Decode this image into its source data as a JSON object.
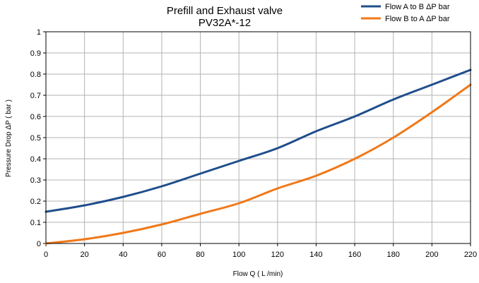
{
  "chart_data": {
    "type": "line",
    "title": "Prefill and Exhaust valve",
    "subtitle": "PV32A*-12",
    "xlabel": "Flow Q ( L /min)",
    "ylabel": "Pressure Drop   ΔP ( bar )",
    "xlim": [
      0,
      220
    ],
    "ylim": [
      0,
      1
    ],
    "xticks": [
      0,
      20,
      40,
      60,
      80,
      100,
      120,
      140,
      160,
      180,
      200,
      220
    ],
    "yticks": [
      0,
      0.1,
      0.2,
      0.3,
      0.4,
      0.5,
      0.6,
      0.7,
      0.8,
      0.9,
      1
    ],
    "ytick_labels": [
      "0",
      "0.1",
      "0.2",
      "0.3",
      "0.4",
      "0.5",
      "0.6",
      "0.7",
      "0.8",
      "0.9",
      "1"
    ],
    "grid": true,
    "legend_position": "top-right",
    "x": [
      0,
      20,
      40,
      60,
      80,
      100,
      120,
      140,
      160,
      180,
      200,
      220
    ],
    "series": [
      {
        "name": "Flow A to B ΔP bar",
        "color": "#1f4e8c",
        "values": [
          0.15,
          0.18,
          0.22,
          0.27,
          0.33,
          0.39,
          0.45,
          0.53,
          0.6,
          0.68,
          0.75,
          0.82
        ]
      },
      {
        "name": "Flow B to A ΔP bar",
        "color": "#f07818",
        "values": [
          0.0,
          0.02,
          0.05,
          0.09,
          0.14,
          0.19,
          0.26,
          0.32,
          0.4,
          0.5,
          0.62,
          0.75
        ]
      }
    ]
  }
}
